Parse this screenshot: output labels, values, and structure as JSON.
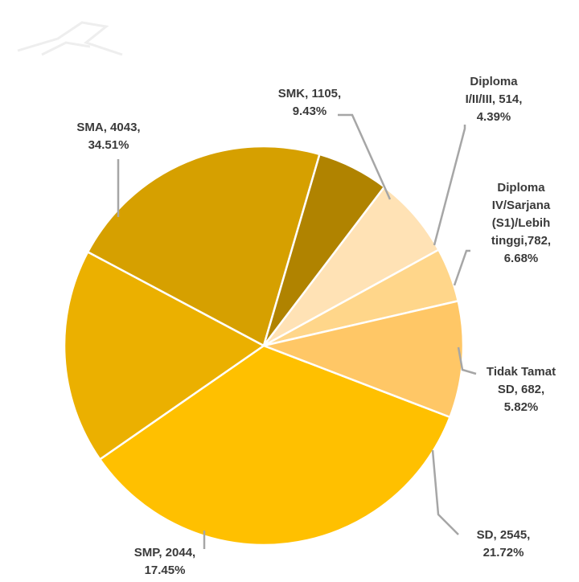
{
  "chart_data": {
    "type": "pie",
    "title": "",
    "legend": "none",
    "start_angle_deg": 21,
    "direction": "counterclockwise",
    "slices": [
      {
        "label": "SMA",
        "value": 4043,
        "percent": "34.51%",
        "color": "#FFC000",
        "label_lines": [
          "SMA, 4043,",
          "34.51%"
        ]
      },
      {
        "label": "SMP",
        "value": 2044,
        "percent": "17.45%",
        "color": "#EBB000",
        "label_lines": [
          "SMP, 2044,",
          "17.45%"
        ]
      },
      {
        "label": "SD",
        "value": 2545,
        "percent": "21.72%",
        "color": "#D6A000",
        "label_lines": [
          "SD, 2545,",
          "21.72%"
        ]
      },
      {
        "label": "Tidak Tamat SD",
        "value": 682,
        "percent": "5.82%",
        "color": "#B08300",
        "label_lines": [
          "Tidak Tamat",
          "SD, 682,",
          "5.82%"
        ]
      },
      {
        "label": "Diploma IV/Sarjana (S1)/Lebih tinggi",
        "value": 782,
        "percent": "6.68%",
        "color": "#FFE2B5",
        "label_lines": [
          "Diploma",
          "IV/Sarjana",
          "(S1)/Lebih",
          "tinggi,782,",
          "6.68%"
        ]
      },
      {
        "label": "Diploma I/II/III",
        "value": 514,
        "percent": "4.39%",
        "color": "#FFD68A",
        "label_lines": [
          "Diploma",
          "I/II/III, 514,",
          "4.39%"
        ]
      },
      {
        "label": "SMK",
        "value": 1105,
        "percent": "9.43%",
        "color": "#FFC766",
        "label_lines": [
          "SMK, 1105,",
          "9.43%"
        ]
      }
    ]
  }
}
